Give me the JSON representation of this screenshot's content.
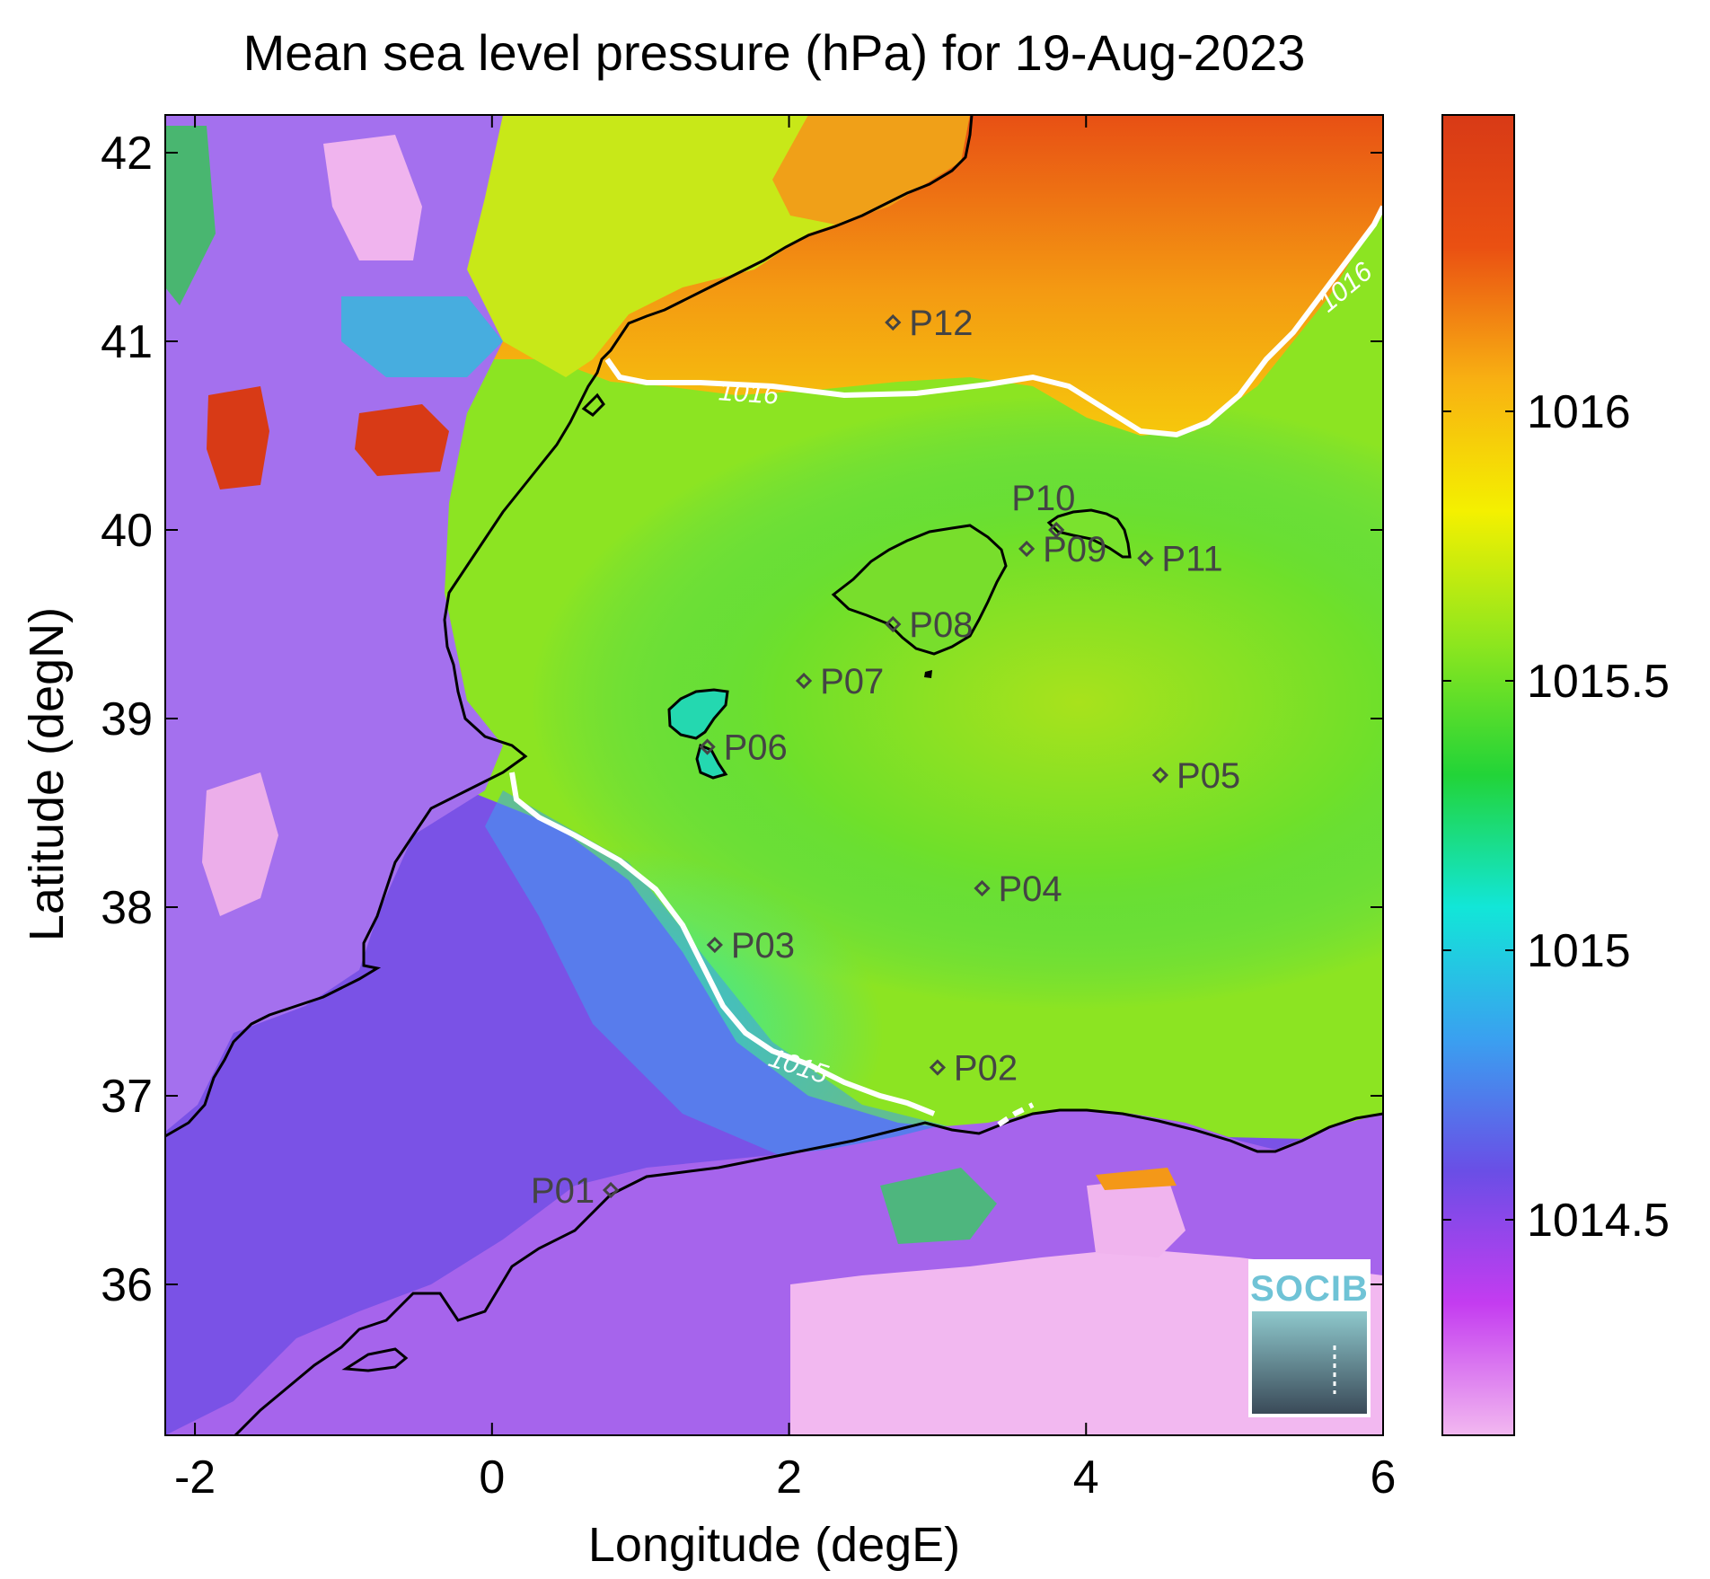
{
  "chart_data": {
    "type": "heatmap",
    "title": "Mean sea level pressure (hPa) for 19-Aug-2023",
    "xlabel": "Longitude (degE)",
    "ylabel": "Latitude (degN)",
    "xlim": [
      -2.2,
      6.0
    ],
    "ylim": [
      35.2,
      42.2
    ],
    "xticks": [
      -2,
      0,
      2,
      4,
      6
    ],
    "xtick_labels": [
      "-2",
      "0",
      "2",
      "4",
      "6"
    ],
    "yticks": [
      36,
      37,
      38,
      39,
      40,
      41,
      42
    ],
    "ytick_labels": [
      "36",
      "37",
      "38",
      "39",
      "40",
      "41",
      "42"
    ],
    "colorbar": {
      "range": [
        1014.1,
        1016.55
      ],
      "ticks": [
        1014.5,
        1015,
        1015.5,
        1016
      ],
      "tick_labels": [
        "1014.5",
        "1015",
        "1015.5",
        "1016"
      ],
      "colormap": [
        "#f2b8f0",
        "#c43cf0",
        "#6a4ee6",
        "#3aa0f0",
        "#12e6d8",
        "#22d438",
        "#8ee61e",
        "#f4f000",
        "#f8b012",
        "#ea5012",
        "#d83a16"
      ]
    },
    "contours": [
      {
        "level": 1015,
        "label": "1015"
      },
      {
        "level": 1016,
        "label": "1016"
      }
    ],
    "stations": [
      {
        "name": "P01",
        "lon": 0.8,
        "lat": 36.5
      },
      {
        "name": "P02",
        "lon": 3.0,
        "lat": 37.15
      },
      {
        "name": "P03",
        "lon": 1.5,
        "lat": 37.8
      },
      {
        "name": "P04",
        "lon": 3.3,
        "lat": 38.1
      },
      {
        "name": "P05",
        "lon": 4.5,
        "lat": 38.7
      },
      {
        "name": "P06",
        "lon": 1.45,
        "lat": 38.85
      },
      {
        "name": "P07",
        "lon": 2.1,
        "lat": 39.2
      },
      {
        "name": "P08",
        "lon": 2.7,
        "lat": 39.5
      },
      {
        "name": "P09",
        "lon": 3.6,
        "lat": 39.9
      },
      {
        "name": "P10",
        "lon": 3.8,
        "lat": 40.0
      },
      {
        "name": "P11",
        "lon": 4.4,
        "lat": 39.85
      },
      {
        "name": "P12",
        "lon": 2.7,
        "lat": 41.1
      }
    ]
  },
  "logo": {
    "text": "SOCIB"
  }
}
